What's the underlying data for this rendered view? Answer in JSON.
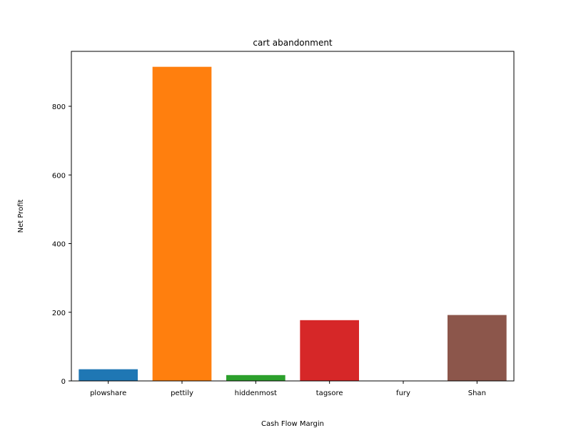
{
  "chart_data": {
    "type": "bar",
    "title": "cart abandonment",
    "xlabel": "Cash Flow Margin",
    "ylabel": "Net Profit",
    "categories": [
      "plowshare",
      "pettily",
      "hiddenmost",
      "tagsore",
      "fury",
      "Shan"
    ],
    "values": [
      34,
      915,
      17,
      177,
      0,
      192
    ],
    "colors": [
      "#1f77b4",
      "#ff7f0e",
      "#2ca02c",
      "#d62728",
      "#9467bd",
      "#8c564b"
    ],
    "ylim": [
      0,
      960
    ],
    "yticks": [
      0,
      200,
      400,
      600,
      800
    ],
    "grid": false,
    "legend": "none"
  }
}
